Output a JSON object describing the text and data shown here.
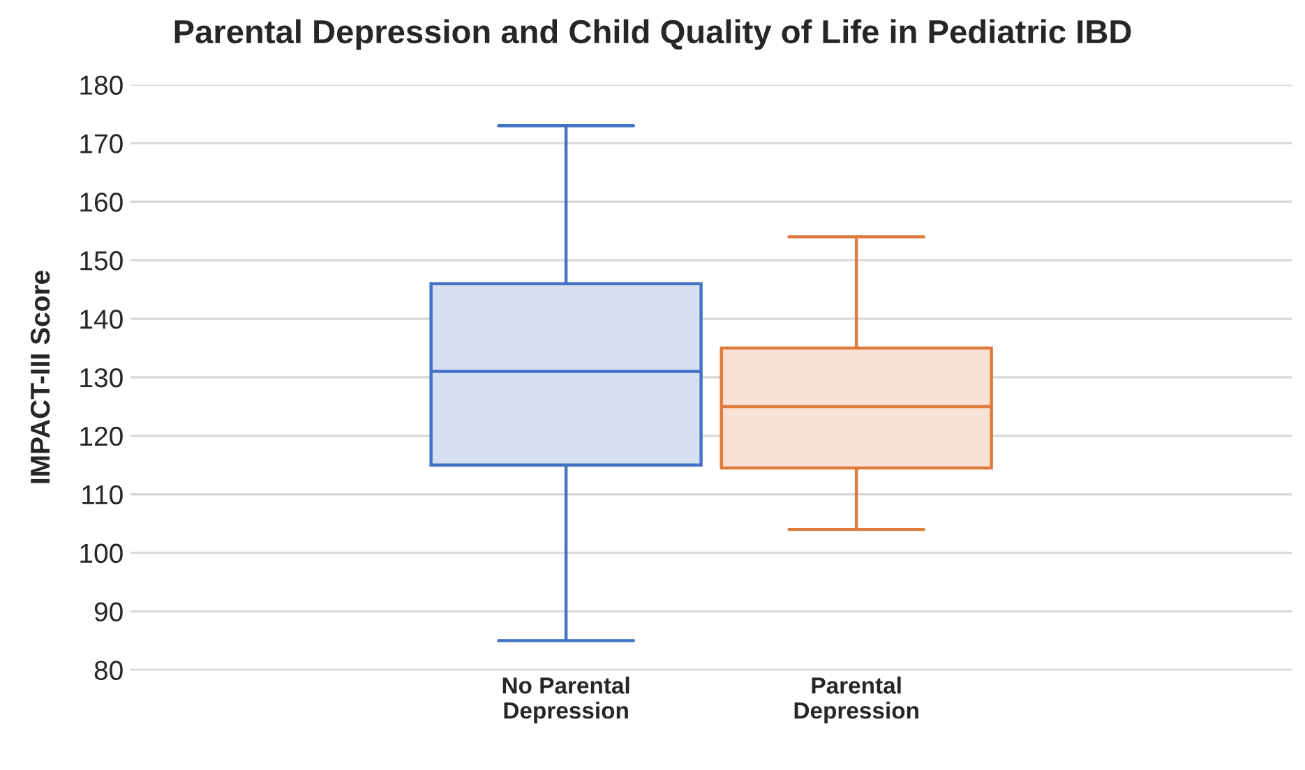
{
  "chart_data": {
    "type": "box",
    "title": "Parental Depression and Child Quality of Life in Pediatric IBD",
    "ylabel": "IMPACT-III Score",
    "categories": [
      "No Parental\nDepression",
      "Parental\nDepression"
    ],
    "boxes": [
      {
        "low": 85,
        "q1": 115,
        "median": 131,
        "q3": 146,
        "high": 173
      },
      {
        "low": 104,
        "q1": 114.5,
        "median": 125,
        "q3": 135,
        "high": 154
      }
    ],
    "colors": [
      "#4472c4",
      "#e07b3e"
    ],
    "ylim": [
      80,
      180
    ],
    "yticks": [
      80,
      90,
      100,
      110,
      120,
      130,
      140,
      150,
      160,
      170,
      180
    ],
    "grid": "y"
  }
}
